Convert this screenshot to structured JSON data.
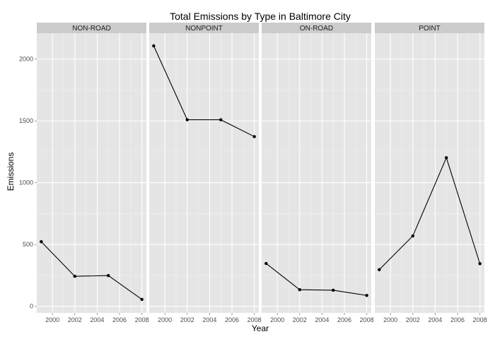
{
  "chart_data": {
    "type": "line",
    "title": "Total Emissions by Type in Baltimore City",
    "xlabel": "Year",
    "ylabel": "Emissions",
    "x": [
      1999,
      2002,
      2005,
      2008
    ],
    "x_ticks": [
      2000,
      2002,
      2004,
      2006,
      2008
    ],
    "y_ticks": [
      0,
      500,
      1000,
      1500,
      2000
    ],
    "xlim": [
      1998.6,
      2008.4
    ],
    "ylim": [
      -53,
      2210
    ],
    "grid": true,
    "facets": [
      {
        "name": "NON-ROAD",
        "values": [
          522.94,
          242.85,
          248.93,
          55.82
        ]
      },
      {
        "name": "NONPOINT",
        "values": [
          2107.625,
          1509.5,
          1509.5,
          1373.207
        ]
      },
      {
        "name": "ON-ROAD",
        "values": [
          346.82,
          134.31,
          130.43,
          88.28
        ]
      },
      {
        "name": "POINT",
        "values": [
          296.795,
          569.26,
          1202.49,
          344.975
        ]
      }
    ]
  },
  "colors": {
    "panel_background": "#e5e5e5",
    "strip_background": "#cccccc",
    "major_grid": "#ffffff",
    "minor_grid": "#f2f2f2",
    "line": "#000000",
    "point": "#000000"
  }
}
